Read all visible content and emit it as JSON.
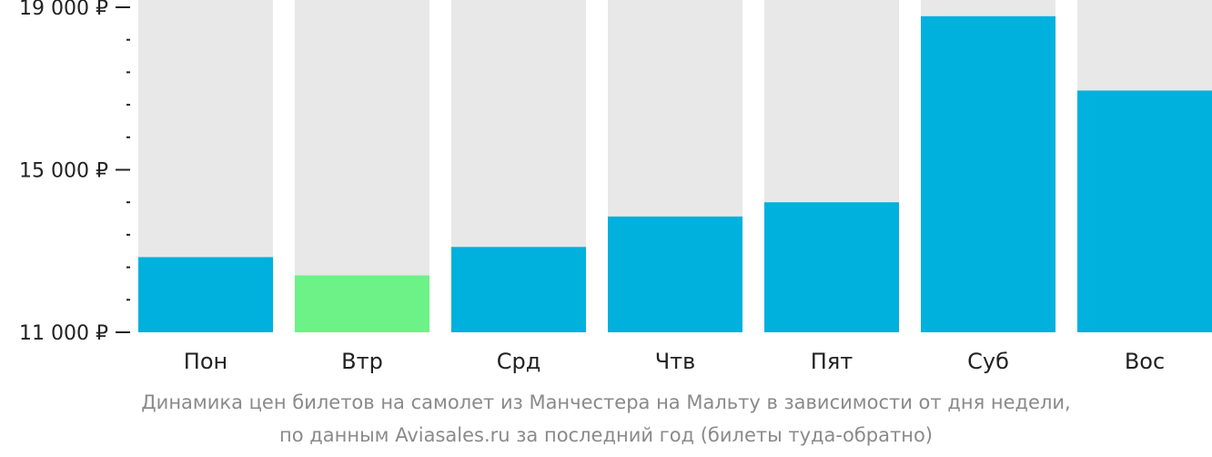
{
  "colors": {
    "bar": "#00b0dd",
    "bar_min": "#6cf287",
    "bar_background": "#e8e8e8",
    "axis": "#222222",
    "caption": "#8a8a8a"
  },
  "caption": {
    "line1": "Динамика цен билетов на самолет из Манчестера на Мальту в зависимости от дня недели,",
    "line2": "по данным Aviasales.ru за последний год (билеты туда-обратно)"
  },
  "chart_data": {
    "type": "bar",
    "categories": [
      "Пон",
      "Втр",
      "Срд",
      "Чтв",
      "Пят",
      "Суб",
      "Вос"
    ],
    "values": [
      12850,
      12400,
      13100,
      13850,
      14200,
      18780,
      16950
    ],
    "min_index": 1,
    "ylim": [
      11000,
      19000
    ],
    "yticks": [
      {
        "value": 11000,
        "label": "11 000 ₽"
      },
      {
        "value": 15000,
        "label": "15 000 ₽"
      },
      {
        "value": 19000,
        "label": "19 000 ₽"
      }
    ],
    "minor_tick_step": 800,
    "grid": false,
    "legend": "none"
  }
}
